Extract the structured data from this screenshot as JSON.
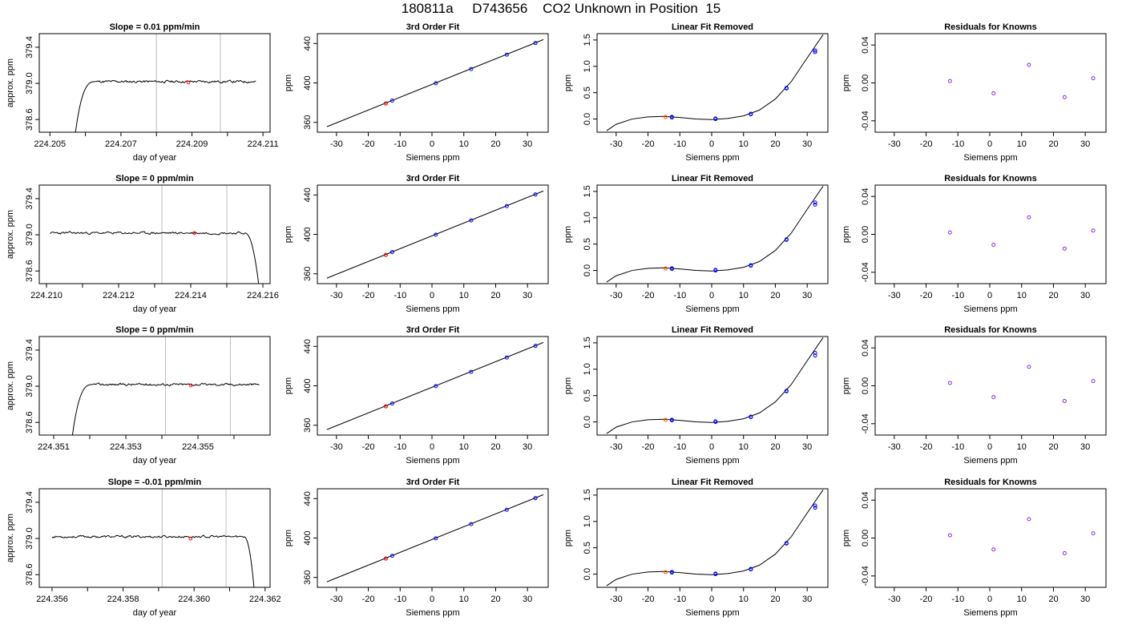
{
  "page": {
    "title": "180811a     D743656    CO2 Unknown in Position  15"
  },
  "colors": {
    "line": "#000000",
    "vline": "#bebebe",
    "known_point": "#0000ff",
    "residual_point": "#8a2be2",
    "unknown_point": "#ff0000",
    "unknown_point_alt": "#ff6a00"
  },
  "chart_data": [
    {
      "type": "line",
      "title": "Slope =  0.01  ppm/min",
      "xlabel": "day of year",
      "ylabel": "approx. ppm",
      "xlim": [
        224.2047,
        224.2112
      ],
      "ylim": [
        378.46,
        379.55
      ],
      "xticks": [
        224.205,
        224.206,
        224.207,
        224.208,
        224.209,
        224.21,
        224.211
      ],
      "xtick_labels": [
        "224.205",
        "",
        "224.207",
        "",
        "224.209",
        "",
        "224.211"
      ],
      "yticks": [
        378.6,
        379.0,
        379.4
      ],
      "ytick_labels": [
        "378.6",
        "379.0",
        "379.4"
      ],
      "vlines": [
        224.208,
        224.2098
      ],
      "trace": {
        "start": 224.2057,
        "end": 224.2108,
        "rise_end": 224.2063,
        "low": 378.4,
        "level": 379.02,
        "drop": null,
        "noise": 0.013,
        "seed": 11
      },
      "marker": {
        "x": 224.2089,
        "y": 379.01
      }
    },
    {
      "type": "scatter",
      "title": "3rd Order Fit",
      "xlabel": "Siemens ppm",
      "ylabel": "ppm",
      "xlim": [
        -36,
        36.5
      ],
      "ylim": [
        350,
        450
      ],
      "xticks": [
        -30,
        -20,
        -10,
        0,
        10,
        20,
        30
      ],
      "xtick_labels": [
        "-30",
        "-20",
        "-10",
        "0",
        "10",
        "20",
        "30"
      ],
      "yticks": [
        360,
        400,
        440
      ],
      "ytick_labels": [
        "360",
        "400",
        "440"
      ],
      "line": [
        [
          -33,
          355.6
        ],
        [
          35,
          444.0
        ]
      ],
      "points": {
        "x": [
          -12.5,
          1.2,
          12.3,
          23.5,
          32.5
        ],
        "y": [
          382.0,
          399.7,
          414.1,
          428.7,
          440.5
        ]
      },
      "unknown": {
        "x": -14.5,
        "y": 379.2
      }
    },
    {
      "type": "scatter",
      "title": "Linear Fit Removed",
      "xlabel": "Siemens ppm",
      "ylabel": "ppm",
      "xlim": [
        -36,
        36.5
      ],
      "ylim": [
        -0.25,
        1.62
      ],
      "xticks": [
        -30,
        -20,
        -10,
        0,
        10,
        20,
        30
      ],
      "xtick_labels": [
        "-30",
        "-20",
        "-10",
        "0",
        "10",
        "20",
        "30"
      ],
      "yticks": [
        0.0,
        0.5,
        1.0,
        1.5
      ],
      "ytick_labels": [
        "0.0",
        "0.5",
        "1.0",
        "1.5"
      ],
      "curve_points": [
        [
          -33,
          -0.22
        ],
        [
          -30,
          -0.1
        ],
        [
          -25,
          0.0
        ],
        [
          -20,
          0.04
        ],
        [
          -15,
          0.05
        ],
        [
          -10,
          0.03
        ],
        [
          -5,
          0.0
        ],
        [
          0,
          -0.01
        ],
        [
          5,
          0.01
        ],
        [
          10,
          0.06
        ],
        [
          15,
          0.17
        ],
        [
          20,
          0.38
        ],
        [
          25,
          0.71
        ],
        [
          30,
          1.16
        ],
        [
          35,
          1.6
        ]
      ],
      "points": {
        "x": [
          -12.5,
          1.2,
          12.3,
          23.5,
          32.5
        ],
        "y": [
          0.03,
          0.0,
          0.09,
          0.58,
          1.27
        ]
      },
      "points2": {
        "x": [
          -12.5,
          1.2,
          12.3,
          23.5,
          32.5
        ],
        "y": [
          0.04,
          0.01,
          0.1,
          0.59,
          1.3
        ]
      },
      "unknown": {
        "x": -14.5,
        "y": 0.04
      }
    },
    {
      "type": "scatter",
      "title": "Residuals for Knowns",
      "xlabel": "Siemens ppm",
      "ylabel": "ppm",
      "xlim": [
        -36,
        36.5
      ],
      "ylim": [
        -0.052,
        0.052
      ],
      "xticks": [
        -30,
        -20,
        -10,
        0,
        10,
        20,
        30
      ],
      "xtick_labels": [
        "-30",
        "-20",
        "-10",
        "0",
        "10",
        "20",
        "30"
      ],
      "yticks": [
        -0.04,
        0.0,
        0.04
      ],
      "ytick_labels": [
        "-0.04",
        "0.00",
        "0.04"
      ],
      "points": {
        "x": [
          -12.5,
          1.2,
          12.3,
          23.5,
          32.5
        ],
        "y": [
          0.002,
          -0.011,
          0.019,
          -0.015,
          0.005
        ]
      }
    },
    {
      "type": "line",
      "title": "Slope =  0  ppm/min",
      "xlabel": "day of year",
      "ylabel": "approx. ppm",
      "xlim": [
        224.2098,
        224.2162
      ],
      "ylim": [
        378.46,
        379.55
      ],
      "xticks": [
        224.21,
        224.211,
        224.212,
        224.213,
        224.214,
        224.215,
        224.216
      ],
      "xtick_labels": [
        "224.210",
        "",
        "224.212",
        "",
        "224.214",
        "",
        "224.216"
      ],
      "yticks": [
        378.6,
        379.0,
        379.4
      ],
      "ytick_labels": [
        "378.6",
        "379.0",
        "379.4"
      ],
      "vlines": [
        224.2132,
        224.215
      ],
      "trace": {
        "start": 224.2101,
        "end": 224.2159,
        "rise_end": null,
        "low": 378.4,
        "level": 379.02,
        "drop": 224.2155,
        "noise": 0.013,
        "seed": 23
      },
      "marker": {
        "x": 224.2141,
        "y": 379.02
      }
    },
    {
      "type": "scatter",
      "title": "3rd Order Fit",
      "xlabel": "Siemens ppm",
      "ylabel": "ppm",
      "xlim": [
        -36,
        36.5
      ],
      "ylim": [
        350,
        450
      ],
      "xticks": [
        -30,
        -20,
        -10,
        0,
        10,
        20,
        30
      ],
      "xtick_labels": [
        "-30",
        "-20",
        "-10",
        "0",
        "10",
        "20",
        "30"
      ],
      "yticks": [
        360,
        400,
        440
      ],
      "ytick_labels": [
        "360",
        "400",
        "440"
      ],
      "line": [
        [
          -33,
          355.6
        ],
        [
          35,
          444.0
        ]
      ],
      "points": {
        "x": [
          -12.5,
          1.2,
          12.3,
          23.5,
          32.5
        ],
        "y": [
          382.0,
          399.7,
          414.1,
          428.7,
          440.5
        ]
      },
      "unknown": {
        "x": -14.5,
        "y": 379.2
      }
    },
    {
      "type": "scatter",
      "title": "Linear Fit Removed",
      "xlabel": "Siemens ppm",
      "ylabel": "ppm",
      "xlim": [
        -36,
        36.5
      ],
      "ylim": [
        -0.25,
        1.62
      ],
      "xticks": [
        -30,
        -20,
        -10,
        0,
        10,
        20,
        30
      ],
      "xtick_labels": [
        "-30",
        "-20",
        "-10",
        "0",
        "10",
        "20",
        "30"
      ],
      "yticks": [
        0.0,
        0.5,
        1.0,
        1.5
      ],
      "ytick_labels": [
        "0.0",
        "0.5",
        "1.0",
        "1.5"
      ],
      "curve_points": [
        [
          -33,
          -0.22
        ],
        [
          -30,
          -0.1
        ],
        [
          -25,
          0.0
        ],
        [
          -20,
          0.04
        ],
        [
          -15,
          0.05
        ],
        [
          -10,
          0.03
        ],
        [
          -5,
          0.0
        ],
        [
          0,
          -0.01
        ],
        [
          5,
          0.01
        ],
        [
          10,
          0.06
        ],
        [
          15,
          0.17
        ],
        [
          20,
          0.38
        ],
        [
          25,
          0.71
        ],
        [
          30,
          1.16
        ],
        [
          35,
          1.6
        ]
      ],
      "points": {
        "x": [
          -12.5,
          1.2,
          12.3,
          23.5,
          32.5
        ],
        "y": [
          0.03,
          0.0,
          0.09,
          0.58,
          1.25
        ]
      },
      "points2": {
        "x": [
          -12.5,
          1.2,
          12.3,
          23.5,
          32.5
        ],
        "y": [
          0.04,
          0.01,
          0.1,
          0.59,
          1.29
        ]
      },
      "unknown": {
        "x": -14.5,
        "y": 0.04
      }
    },
    {
      "type": "scatter",
      "title": "Residuals for Knowns",
      "xlabel": "Siemens ppm",
      "ylabel": "ppm",
      "xlim": [
        -36,
        36.5
      ],
      "ylim": [
        -0.052,
        0.052
      ],
      "xticks": [
        -30,
        -20,
        -10,
        0,
        10,
        20,
        30
      ],
      "xtick_labels": [
        "-30",
        "-20",
        "-10",
        "0",
        "10",
        "20",
        "30"
      ],
      "yticks": [
        -0.04,
        0.0,
        0.04
      ],
      "ytick_labels": [
        "-0.04",
        "0.00",
        "0.04"
      ],
      "points": {
        "x": [
          -12.5,
          1.2,
          12.3,
          23.5,
          32.5
        ],
        "y": [
          0.002,
          -0.011,
          0.018,
          -0.015,
          0.004
        ]
      }
    },
    {
      "type": "line",
      "title": "Slope =  0  ppm/min",
      "xlabel": "day of year",
      "ylabel": "approx. ppm",
      "xlim": [
        224.3506,
        224.357
      ],
      "ylim": [
        378.46,
        379.55
      ],
      "xticks": [
        224.351,
        224.352,
        224.353,
        224.354,
        224.355,
        224.356
      ],
      "xtick_labels": [
        "224.351",
        "",
        "224.353",
        "",
        "224.355",
        ""
      ],
      "yticks": [
        378.6,
        379.0,
        379.4
      ],
      "ytick_labels": [
        "378.6",
        "379.0",
        "379.4"
      ],
      "vlines": [
        224.3541,
        224.3559
      ],
      "trace": {
        "start": 224.3515,
        "end": 224.3567,
        "rise_end": 224.3521,
        "low": 378.4,
        "level": 379.02,
        "drop": null,
        "noise": 0.013,
        "seed": 37
      },
      "marker": {
        "x": 224.3548,
        "y": 379.01
      }
    },
    {
      "type": "scatter",
      "title": "3rd Order Fit",
      "xlabel": "Siemens ppm",
      "ylabel": "ppm",
      "xlim": [
        -36,
        36.5
      ],
      "ylim": [
        350,
        450
      ],
      "xticks": [
        -30,
        -20,
        -10,
        0,
        10,
        20,
        30
      ],
      "xtick_labels": [
        "-30",
        "-20",
        "-10",
        "0",
        "10",
        "20",
        "30"
      ],
      "yticks": [
        360,
        400,
        440
      ],
      "ytick_labels": [
        "360",
        "400",
        "440"
      ],
      "line": [
        [
          -33,
          355.6
        ],
        [
          35,
          444.0
        ]
      ],
      "points": {
        "x": [
          -12.5,
          1.2,
          12.3,
          23.5,
          32.5
        ],
        "y": [
          382.0,
          399.7,
          414.1,
          428.7,
          440.5
        ]
      },
      "unknown": {
        "x": -14.5,
        "y": 379.2
      }
    },
    {
      "type": "scatter",
      "title": "Linear Fit Removed",
      "xlabel": "Siemens ppm",
      "ylabel": "ppm",
      "xlim": [
        -36,
        36.5
      ],
      "ylim": [
        -0.25,
        1.62
      ],
      "xticks": [
        -30,
        -20,
        -10,
        0,
        10,
        20,
        30
      ],
      "xtick_labels": [
        "-30",
        "-20",
        "-10",
        "0",
        "10",
        "20",
        "30"
      ],
      "yticks": [
        0.0,
        0.5,
        1.0,
        1.5
      ],
      "ytick_labels": [
        "0.0",
        "0.5",
        "1.0",
        "1.5"
      ],
      "curve_points": [
        [
          -33,
          -0.22
        ],
        [
          -30,
          -0.1
        ],
        [
          -25,
          0.0
        ],
        [
          -20,
          0.04
        ],
        [
          -15,
          0.05
        ],
        [
          -10,
          0.03
        ],
        [
          -5,
          0.0
        ],
        [
          0,
          -0.01
        ],
        [
          5,
          0.01
        ],
        [
          10,
          0.06
        ],
        [
          15,
          0.17
        ],
        [
          20,
          0.38
        ],
        [
          25,
          0.71
        ],
        [
          30,
          1.16
        ],
        [
          35,
          1.6
        ]
      ],
      "points": {
        "x": [
          -12.5,
          1.2,
          12.3,
          23.5,
          32.5
        ],
        "y": [
          0.03,
          0.0,
          0.09,
          0.58,
          1.26
        ]
      },
      "points2": {
        "x": [
          -12.5,
          1.2,
          12.3,
          23.5,
          32.5
        ],
        "y": [
          0.04,
          0.01,
          0.1,
          0.59,
          1.31
        ]
      },
      "unknown": {
        "x": -14.5,
        "y": 0.04
      }
    },
    {
      "type": "scatter",
      "title": "Residuals for Knowns",
      "xlabel": "Siemens ppm",
      "ylabel": "ppm",
      "xlim": [
        -36,
        36.5
      ],
      "ylim": [
        -0.052,
        0.052
      ],
      "xticks": [
        -30,
        -20,
        -10,
        0,
        10,
        20,
        30
      ],
      "xtick_labels": [
        "-30",
        "-20",
        "-10",
        "0",
        "10",
        "20",
        "30"
      ],
      "yticks": [
        -0.04,
        0.0,
        0.04
      ],
      "ytick_labels": [
        "-0.04",
        "0.00",
        "0.04"
      ],
      "points": {
        "x": [
          -12.5,
          1.2,
          12.3,
          23.5,
          32.5
        ],
        "y": [
          0.003,
          -0.012,
          0.02,
          -0.016,
          0.005
        ]
      }
    },
    {
      "type": "line",
      "title": "Slope =  -0.01  ppm/min",
      "xlabel": "day of year",
      "ylabel": "approx. ppm",
      "xlim": [
        224.35564,
        224.36214
      ],
      "ylim": [
        378.46,
        379.55
      ],
      "xticks": [
        224.356,
        224.357,
        224.358,
        224.359,
        224.36,
        224.361,
        224.362
      ],
      "xtick_labels": [
        "224.356",
        "",
        "224.358",
        "",
        "224.360",
        "",
        "224.362"
      ],
      "yticks": [
        378.6,
        379.0,
        379.4
      ],
      "ytick_labels": [
        "378.6",
        "379.0",
        "379.4"
      ],
      "vlines": [
        224.3591,
        224.3609
      ],
      "trace": {
        "start": 224.356,
        "end": 224.3617,
        "rise_end": null,
        "low": 378.4,
        "level": 379.02,
        "drop": 224.3614,
        "noise": 0.013,
        "seed": 53
      },
      "marker": {
        "x": 224.3599,
        "y": 379.0
      }
    },
    {
      "type": "scatter",
      "title": "3rd Order Fit",
      "xlabel": "Siemens ppm",
      "ylabel": "ppm",
      "xlim": [
        -36,
        36.5
      ],
      "ylim": [
        350,
        450
      ],
      "xticks": [
        -30,
        -20,
        -10,
        0,
        10,
        20,
        30
      ],
      "xtick_labels": [
        "-30",
        "-20",
        "-10",
        "0",
        "10",
        "20",
        "30"
      ],
      "yticks": [
        360,
        400,
        440
      ],
      "ytick_labels": [
        "360",
        "400",
        "440"
      ],
      "line": [
        [
          -33,
          355.6
        ],
        [
          35,
          444.0
        ]
      ],
      "points": {
        "x": [
          -12.5,
          1.2,
          12.3,
          23.5,
          32.5
        ],
        "y": [
          382.0,
          399.7,
          414.1,
          428.7,
          440.5
        ]
      },
      "unknown": {
        "x": -14.5,
        "y": 379.2
      }
    },
    {
      "type": "scatter",
      "title": "Linear Fit Removed",
      "xlabel": "Siemens ppm",
      "ylabel": "ppm",
      "xlim": [
        -36,
        36.5
      ],
      "ylim": [
        -0.25,
        1.62
      ],
      "xticks": [
        -30,
        -20,
        -10,
        0,
        10,
        20,
        30
      ],
      "xtick_labels": [
        "-30",
        "-20",
        "-10",
        "0",
        "10",
        "20",
        "30"
      ],
      "yticks": [
        0.0,
        0.5,
        1.0,
        1.5
      ],
      "ytick_labels": [
        "0.0",
        "0.5",
        "1.0",
        "1.5"
      ],
      "curve_points": [
        [
          -33,
          -0.22
        ],
        [
          -30,
          -0.1
        ],
        [
          -25,
          0.0
        ],
        [
          -20,
          0.04
        ],
        [
          -15,
          0.05
        ],
        [
          -10,
          0.03
        ],
        [
          -5,
          0.0
        ],
        [
          0,
          -0.01
        ],
        [
          5,
          0.01
        ],
        [
          10,
          0.06
        ],
        [
          15,
          0.17
        ],
        [
          20,
          0.38
        ],
        [
          25,
          0.71
        ],
        [
          30,
          1.16
        ],
        [
          35,
          1.6
        ]
      ],
      "points": {
        "x": [
          -12.5,
          1.2,
          12.3,
          23.5,
          32.5
        ],
        "y": [
          0.03,
          0.0,
          0.09,
          0.58,
          1.26
        ]
      },
      "points2": {
        "x": [
          -12.5,
          1.2,
          12.3,
          23.5,
          32.5
        ],
        "y": [
          0.04,
          0.01,
          0.1,
          0.59,
          1.3
        ]
      },
      "unknown": {
        "x": -14.5,
        "y": 0.04
      }
    },
    {
      "type": "scatter",
      "title": "Residuals for Knowns",
      "xlabel": "Siemens ppm",
      "ylabel": "ppm",
      "xlim": [
        -36,
        36.5
      ],
      "ylim": [
        -0.052,
        0.052
      ],
      "xticks": [
        -30,
        -20,
        -10,
        0,
        10,
        20,
        30
      ],
      "xtick_labels": [
        "-30",
        "-20",
        "-10",
        "0",
        "10",
        "20",
        "30"
      ],
      "yticks": [
        -0.04,
        0.0,
        0.04
      ],
      "ytick_labels": [
        "-0.04",
        "0.00",
        "0.04"
      ],
      "points": {
        "x": [
          -12.5,
          1.2,
          12.3,
          23.5,
          32.5
        ],
        "y": [
          0.003,
          -0.012,
          0.02,
          -0.016,
          0.005
        ]
      }
    }
  ]
}
